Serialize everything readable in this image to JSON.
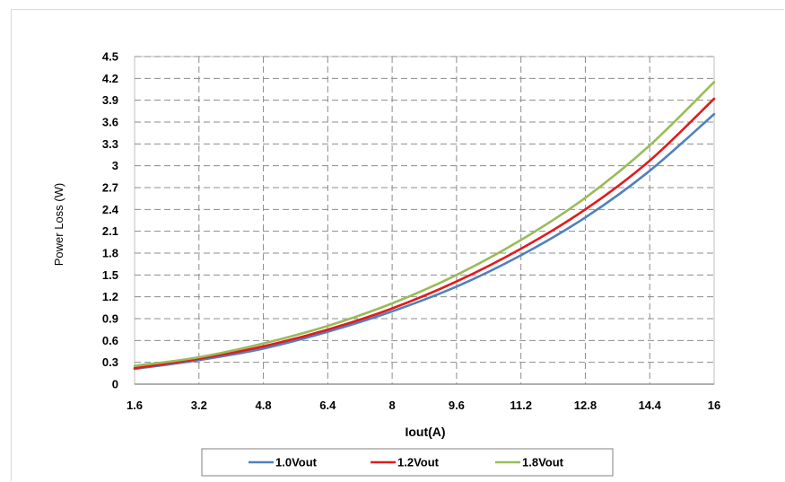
{
  "chart_data": {
    "type": "line",
    "title": "",
    "xlabel": "Iout(A)",
    "ylabel": "Power Loss (W)",
    "xlim": [
      1.6,
      16
    ],
    "ylim": [
      0,
      4.5
    ],
    "x_ticks": [
      "1.6",
      "3.2",
      "4.8",
      "6.4",
      "8",
      "9.6",
      "11.2",
      "12.8",
      "14.4",
      "16"
    ],
    "y_ticks": [
      "0",
      "0.3",
      "0.6",
      "0.9",
      "1.2",
      "1.5",
      "1.8",
      "2.1",
      "2.4",
      "2.7",
      "3",
      "3.3",
      "3.6",
      "3.9",
      "4.2",
      "4.5"
    ],
    "grid": true,
    "legend_position": "bottom",
    "x": [
      1.6,
      3.2,
      4.8,
      6.4,
      8,
      9.6,
      11.2,
      12.8,
      14.4,
      16
    ],
    "series": [
      {
        "name": "1.0Vout",
        "color": "#4f81bd",
        "values": [
          0.21,
          0.33,
          0.49,
          0.72,
          1.0,
          1.34,
          1.77,
          2.29,
          2.93,
          3.71
        ]
      },
      {
        "name": "1.2Vout",
        "color": "#e31a1c",
        "values": [
          0.22,
          0.35,
          0.52,
          0.75,
          1.04,
          1.41,
          1.86,
          2.4,
          3.07,
          3.92
        ]
      },
      {
        "name": "1.8Vout",
        "color": "#9bbb59",
        "values": [
          0.25,
          0.37,
          0.56,
          0.8,
          1.11,
          1.5,
          1.98,
          2.56,
          3.28,
          4.15
        ]
      }
    ]
  }
}
